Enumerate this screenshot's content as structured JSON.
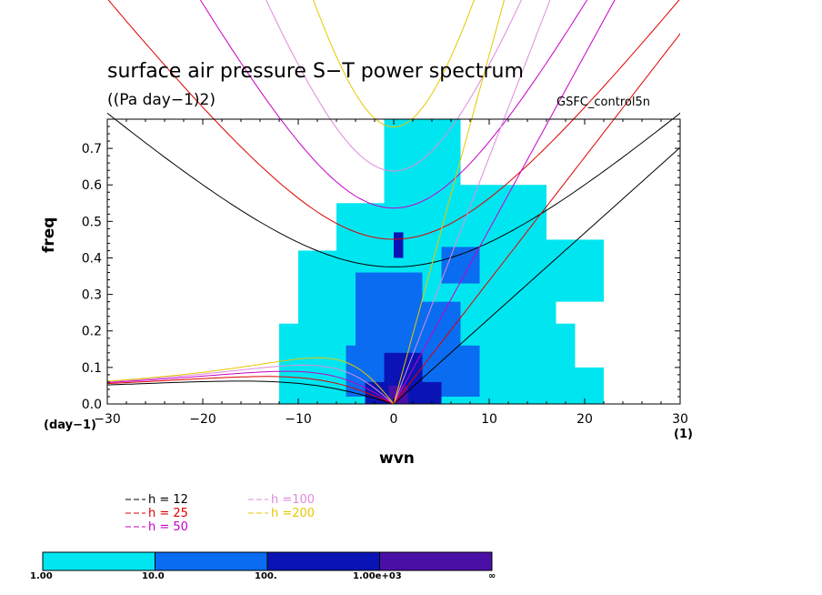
{
  "chart_data": {
    "type": "heatmap",
    "title": "surface air pressure S−T power spectrum",
    "units": "((Pa day−1)2)",
    "run_name": "GSFC_control5n",
    "xlabel": "wvn",
    "ylabel": "freq",
    "x_unit": "(1)",
    "y_unit": "(day−1)",
    "xlim": [
      -30,
      30
    ],
    "ylim": [
      0,
      0.78
    ],
    "x_ticks": [
      -30,
      -20,
      -10,
      0,
      10,
      20,
      30
    ],
    "y_ticks": [
      0.0,
      0.1,
      0.2,
      0.3,
      0.4,
      0.5,
      0.6,
      0.7
    ],
    "y_tick_labels": [
      "0.0",
      "0.1",
      "0.2",
      "0.3",
      "0.4",
      "0.5",
      "0.6",
      "0.7"
    ],
    "shading_levels": [
      {
        "label": "1.00",
        "color": "#00e6f0"
      },
      {
        "label": "10.0",
        "color": "#0a6cf0"
      },
      {
        "label": "100.",
        "color": "#0a14b4"
      },
      {
        "label": "1.00e+03",
        "color": "#4a10a6"
      }
    ],
    "shading_end_label": "∞",
    "dispersion_curves": [
      {
        "name": "h = 12",
        "h": 12,
        "color": "#000000"
      },
      {
        "name": "h = 25",
        "h": 25,
        "color": "#e00000"
      },
      {
        "name": "h = 50",
        "h": 50,
        "color": "#c800c8"
      },
      {
        "name": "h =100",
        "h": 100,
        "color": "#dc8cdc"
      },
      {
        "name": "h =200",
        "h": 200,
        "color": "#e6c800"
      }
    ],
    "shaded_regions": [
      {
        "level": 1,
        "cells": [
          [
            -1,
            0.0,
            7,
            0.78
          ],
          [
            -6,
            0.0,
            12,
            0.55
          ],
          [
            -10,
            0.0,
            17,
            0.42
          ],
          [
            -12,
            0.0,
            19,
            0.22
          ],
          [
            -8,
            0.0,
            22,
            0.1
          ],
          [
            5,
            0.38,
            16,
            0.6
          ],
          [
            9,
            0.28,
            22,
            0.45
          ]
        ]
      },
      {
        "level": 2,
        "cells": [
          [
            -4,
            0.02,
            3,
            0.36
          ],
          [
            2,
            0.02,
            7,
            0.28
          ],
          [
            -5,
            0.02,
            9,
            0.16
          ],
          [
            5,
            0.33,
            9,
            0.43
          ]
        ]
      },
      {
        "level": 3,
        "cells": [
          [
            -1,
            0.0,
            3,
            0.14
          ],
          [
            -3,
            0.0,
            5,
            0.06
          ],
          [
            0,
            0.4,
            1,
            0.47
          ]
        ]
      },
      {
        "level": 4,
        "cells": [
          [
            -0.5,
            0.0,
            1.5,
            0.05
          ]
        ]
      }
    ]
  },
  "legend_col1": [
    "h = 12",
    "h = 25",
    "h = 50"
  ],
  "legend_col2": [
    "h =100",
    "h =200"
  ]
}
